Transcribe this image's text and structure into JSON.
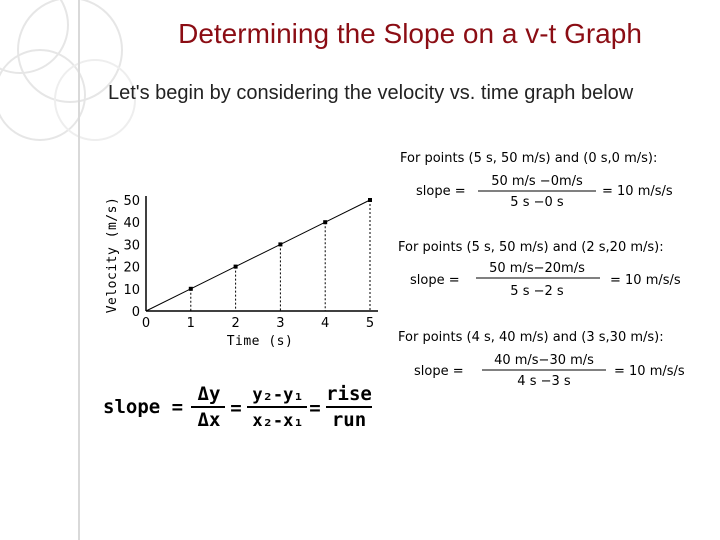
{
  "slide": {
    "title": "Determining the Slope on a v-t Graph",
    "intro": "Let's begin by considering the velocity vs. time graph below"
  },
  "chart_data": {
    "type": "line",
    "xlabel": "Time (s)",
    "ylabel": "Velocity (m/s)",
    "x_tick_labels": [
      "0",
      "1",
      "2",
      "3",
      "4",
      "5"
    ],
    "y_tick_labels": [
      "0",
      "10",
      "20",
      "30",
      "40",
      "50"
    ],
    "xlim": [
      0,
      5
    ],
    "ylim": [
      0,
      50
    ],
    "series": [
      {
        "x": [
          0,
          1,
          2,
          3,
          4,
          5
        ],
        "y": [
          0,
          10,
          20,
          30,
          40,
          50
        ]
      }
    ],
    "grid": false
  },
  "slope_formula": {
    "lhs": "slope =",
    "num1": "Δy",
    "den1": "Δx",
    "eq": "=",
    "num2": "y₂-y₁",
    "den2": "x₂-x₁",
    "eq2": "=",
    "num3": "rise",
    "den3": "run"
  },
  "examples": [
    {
      "heading": "For points (5 s, 50 m/s) and (0 s,0 m/s):",
      "lhs": "slope =",
      "numerator": "50 m/s −0m/s",
      "denominator": "5 s −0 s",
      "result": "= 10 m/s/s"
    },
    {
      "heading": "For points (5 s, 50 m/s) and (2 s,20 m/s):",
      "lhs": "slope =",
      "numerator": "50 m/s−20m/s",
      "denominator": "5 s −2 s",
      "result": "= 10 m/s/s"
    },
    {
      "heading": "For points (4 s, 40 m/s) and (3 s,30 m/s):",
      "lhs": "slope =",
      "numerator": "40 m/s−30 m/s",
      "denominator": "4 s −3 s",
      "result": "= 10 m/s/s"
    }
  ],
  "colors": {
    "title": "#8b0d14",
    "ink": "#000000",
    "decoration": "#d9d9d9"
  }
}
